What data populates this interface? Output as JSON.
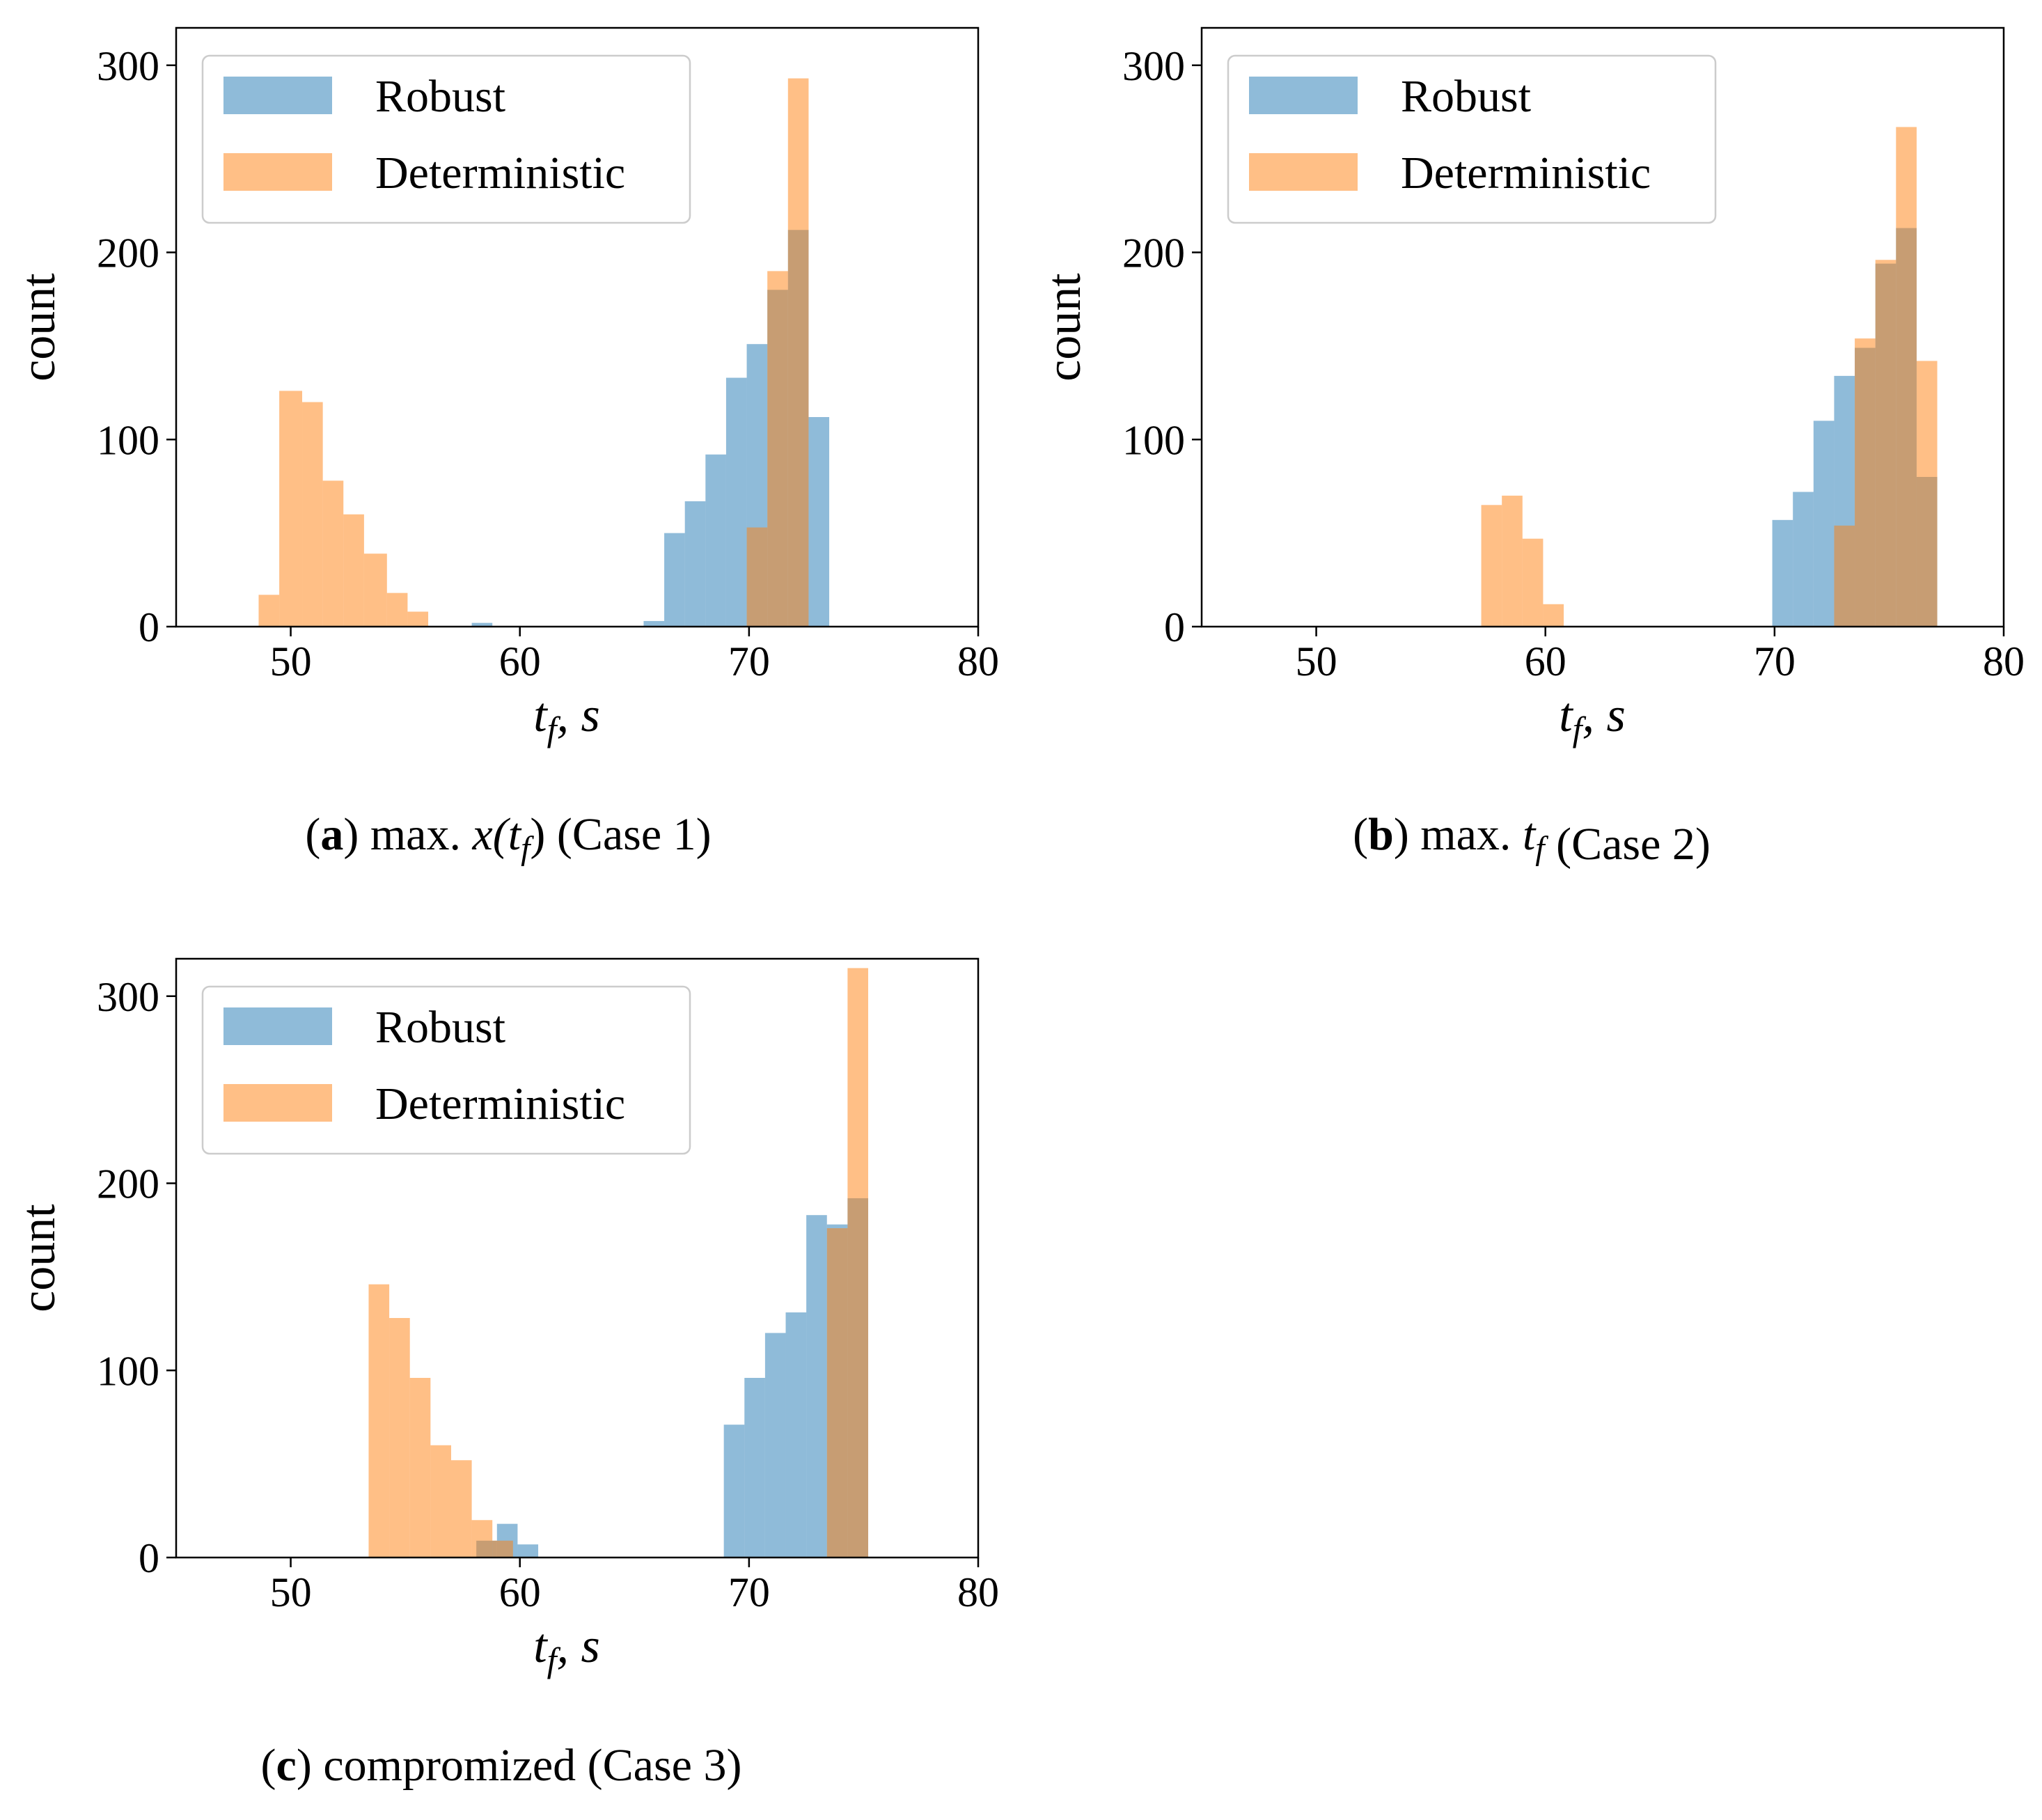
{
  "figure": {
    "colors": {
      "robust": "#1f77b4",
      "deterministic": "#ff7f0e",
      "alpha": 0.5
    }
  },
  "chart_data": [
    {
      "id": "a",
      "type": "bar",
      "subtype": "overlaid histogram",
      "caption": {
        "letter": "a",
        "left_paren": "(",
        "right_paren": ")",
        "text_before": "max. ",
        "math": "x(t",
        "math_sub": "f",
        "math_close": ")",
        "text_after": " (Case 1)"
      },
      "xlabel": {
        "main": "t",
        "sub": "f",
        "rest": ", s"
      },
      "ylabel": "count",
      "xlim": [
        45,
        80
      ],
      "ylim": [
        0,
        320
      ],
      "xticks": [
        50,
        60,
        70,
        80
      ],
      "yticks": [
        0,
        100,
        200,
        300
      ],
      "legend": {
        "position": "top-left",
        "entries": [
          "Robust",
          "Deterministic"
        ]
      },
      "series": [
        {
          "name": "Robust",
          "bins": [
            [
              57.9,
              58.8,
              2
            ],
            [
              65.4,
              66.3,
              3
            ],
            [
              66.3,
              67.2,
              50
            ],
            [
              67.2,
              68.1,
              67
            ],
            [
              68.1,
              69.0,
              92
            ],
            [
              69.0,
              69.9,
              133
            ],
            [
              69.9,
              70.8,
              151
            ],
            [
              70.8,
              71.7,
              180
            ],
            [
              71.7,
              72.6,
              212
            ],
            [
              72.6,
              73.5,
              112
            ]
          ]
        },
        {
          "name": "Deterministic",
          "bins": [
            [
              48.6,
              49.5,
              17
            ],
            [
              49.5,
              50.5,
              126
            ],
            [
              50.5,
              51.4,
              120
            ],
            [
              51.4,
              52.3,
              78
            ],
            [
              52.3,
              53.2,
              60
            ],
            [
              53.2,
              54.2,
              39
            ],
            [
              54.2,
              55.1,
              18
            ],
            [
              55.1,
              56.0,
              8
            ],
            [
              69.9,
              70.8,
              53
            ],
            [
              70.8,
              71.7,
              190
            ],
            [
              71.7,
              72.6,
              293
            ]
          ]
        }
      ]
    },
    {
      "id": "b",
      "type": "bar",
      "subtype": "overlaid histogram",
      "caption": {
        "letter": "b",
        "left_paren": "(",
        "right_paren": ")",
        "text_before": "max. ",
        "math": "t",
        "math_sub": "f",
        "math_close": "",
        "text_after": " (Case 2)"
      },
      "xlabel": {
        "main": "t",
        "sub": "f",
        "rest": ", s"
      },
      "ylabel": "count",
      "xlim": [
        45,
        80
      ],
      "ylim": [
        0,
        320
      ],
      "xticks": [
        50,
        60,
        70,
        80
      ],
      "yticks": [
        0,
        100,
        200,
        300
      ],
      "legend": {
        "position": "top-left",
        "entries": [
          "Robust",
          "Deterministic"
        ]
      },
      "series": [
        {
          "name": "Robust",
          "bins": [
            [
              69.9,
              70.8,
              57
            ],
            [
              70.8,
              71.7,
              72
            ],
            [
              71.7,
              72.6,
              110
            ],
            [
              72.6,
              73.5,
              134
            ],
            [
              73.5,
              74.4,
              149
            ],
            [
              74.4,
              75.3,
              194
            ],
            [
              75.3,
              76.2,
              213
            ],
            [
              76.2,
              77.1,
              80
            ]
          ]
        },
        {
          "name": "Deterministic",
          "bins": [
            [
              57.2,
              58.1,
              65
            ],
            [
              58.1,
              59.0,
              70
            ],
            [
              59.0,
              59.9,
              47
            ],
            [
              59.9,
              60.8,
              12
            ],
            [
              72.6,
              73.5,
              54
            ],
            [
              73.5,
              74.4,
              154
            ],
            [
              74.4,
              75.3,
              196
            ],
            [
              75.3,
              76.2,
              267
            ],
            [
              76.2,
              77.1,
              142
            ]
          ]
        }
      ]
    },
    {
      "id": "c",
      "type": "bar",
      "subtype": "overlaid histogram",
      "caption": {
        "letter": "c",
        "left_paren": "(",
        "right_paren": ")",
        "text_before": "",
        "math": "",
        "math_sub": "",
        "math_close": "",
        "text_after": " compromized (Case 3)"
      },
      "xlabel": {
        "main": "t",
        "sub": "f",
        "rest": ", s"
      },
      "ylabel": "count",
      "xlim": [
        45,
        80
      ],
      "ylim": [
        0,
        320
      ],
      "xticks": [
        50,
        60,
        70,
        80
      ],
      "yticks": [
        0,
        100,
        200,
        300
      ],
      "legend": {
        "position": "top-left",
        "entries": [
          "Robust",
          "Deterministic"
        ]
      },
      "series": [
        {
          "name": "Robust",
          "bins": [
            [
              58.1,
              59.0,
              9
            ],
            [
              59.0,
              59.9,
              18
            ],
            [
              59.9,
              60.8,
              7
            ],
            [
              68.9,
              69.8,
              71
            ],
            [
              69.8,
              70.7,
              96
            ],
            [
              70.7,
              71.6,
              120
            ],
            [
              71.6,
              72.5,
              131
            ],
            [
              72.5,
              73.4,
              183
            ],
            [
              73.4,
              74.3,
              178
            ],
            [
              74.3,
              75.2,
              192
            ]
          ]
        },
        {
          "name": "Deterministic",
          "bins": [
            [
              53.4,
              54.3,
              146
            ],
            [
              54.3,
              55.2,
              128
            ],
            [
              55.2,
              56.1,
              96
            ],
            [
              56.1,
              57.0,
              60
            ],
            [
              57.0,
              57.9,
              52
            ],
            [
              57.9,
              58.8,
              20
            ],
            [
              58.8,
              59.7,
              9
            ],
            [
              73.4,
              74.3,
              176
            ],
            [
              74.3,
              75.2,
              315
            ]
          ]
        }
      ]
    }
  ]
}
